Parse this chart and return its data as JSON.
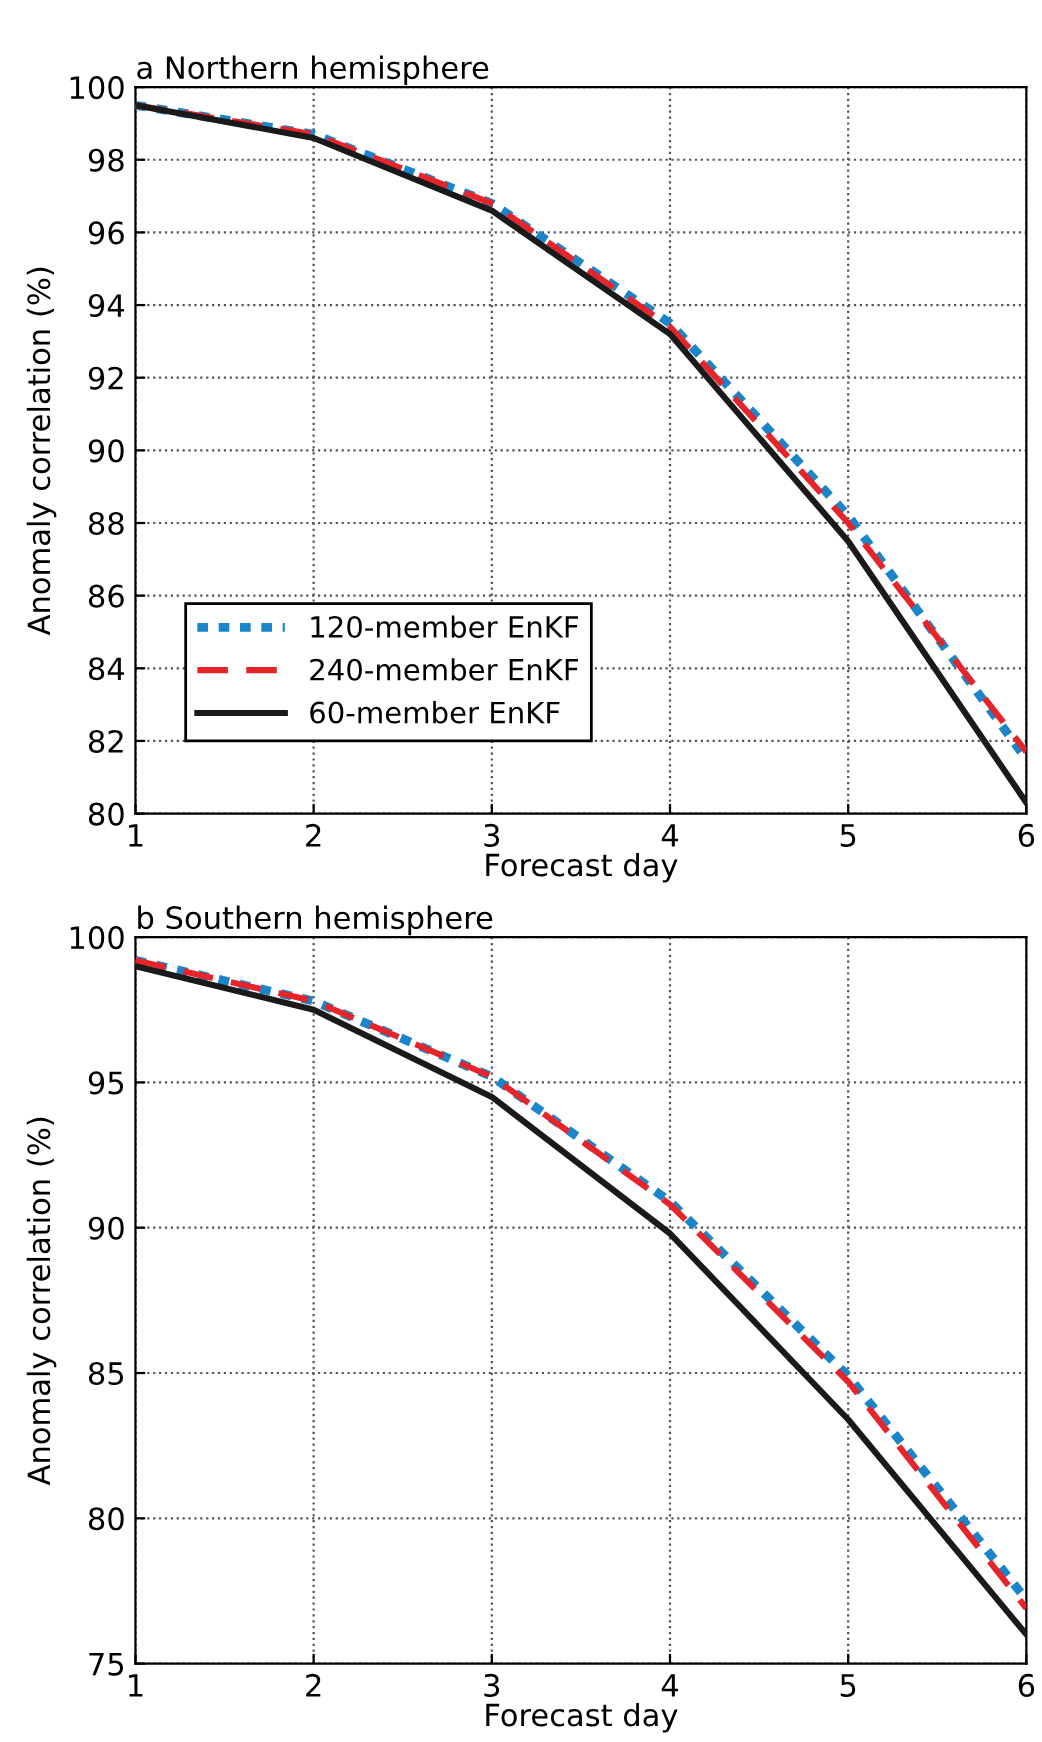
{
  "chart_data": [
    {
      "type": "line",
      "title": "a Northern hemisphere",
      "xlabel": "Forecast day",
      "ylabel": "Anomaly correlation (%)",
      "x": [
        1,
        2,
        3,
        4,
        5,
        6
      ],
      "xlim": [
        1,
        6
      ],
      "xticks": [
        1,
        2,
        3,
        4,
        5,
        6
      ],
      "ylim": [
        80,
        100
      ],
      "yticks": [
        80,
        82,
        84,
        86,
        88,
        90,
        92,
        94,
        96,
        98,
        100
      ],
      "grid": true,
      "legend": "bottom left",
      "series": [
        {
          "name": "120-member EnKF",
          "color": "#1a85c8",
          "line_style": "dotted",
          "values": [
            99.5,
            98.7,
            96.8,
            93.5,
            88.2,
            81.5
          ]
        },
        {
          "name": "240-member EnKF",
          "color": "#e8242b",
          "line_style": "dashed",
          "values": [
            99.5,
            98.7,
            96.8,
            93.4,
            88.0,
            81.7
          ]
        },
        {
          "name": "60-member EnKF",
          "color": "#1a1a1a",
          "line_style": "solid",
          "values": [
            99.5,
            98.6,
            96.6,
            93.2,
            87.5,
            80.3
          ]
        }
      ]
    },
    {
      "type": "line",
      "title": "b Southern hemisphere",
      "xlabel": "Forecast day",
      "ylabel": "Anomaly correlation (%)",
      "x": [
        1,
        2,
        3,
        4,
        5,
        6
      ],
      "xlim": [
        1,
        6
      ],
      "xticks": [
        1,
        2,
        3,
        4,
        5,
        6
      ],
      "ylim": [
        75,
        100
      ],
      "yticks": [
        75,
        80,
        85,
        90,
        95,
        100
      ],
      "grid": true,
      "series": [
        {
          "color": "#1a85c8",
          "line_style": "dotted",
          "values": [
            99.2,
            97.8,
            95.2,
            90.9,
            84.9,
            77.2
          ]
        },
        {
          "color": "#e8242b",
          "line_style": "dashed",
          "values": [
            99.2,
            97.8,
            95.2,
            90.8,
            84.7,
            76.9
          ]
        },
        {
          "color": "#1a1a1a",
          "line_style": "solid",
          "values": [
            99.0,
            97.5,
            94.5,
            89.8,
            83.4,
            76.0
          ]
        }
      ]
    }
  ]
}
